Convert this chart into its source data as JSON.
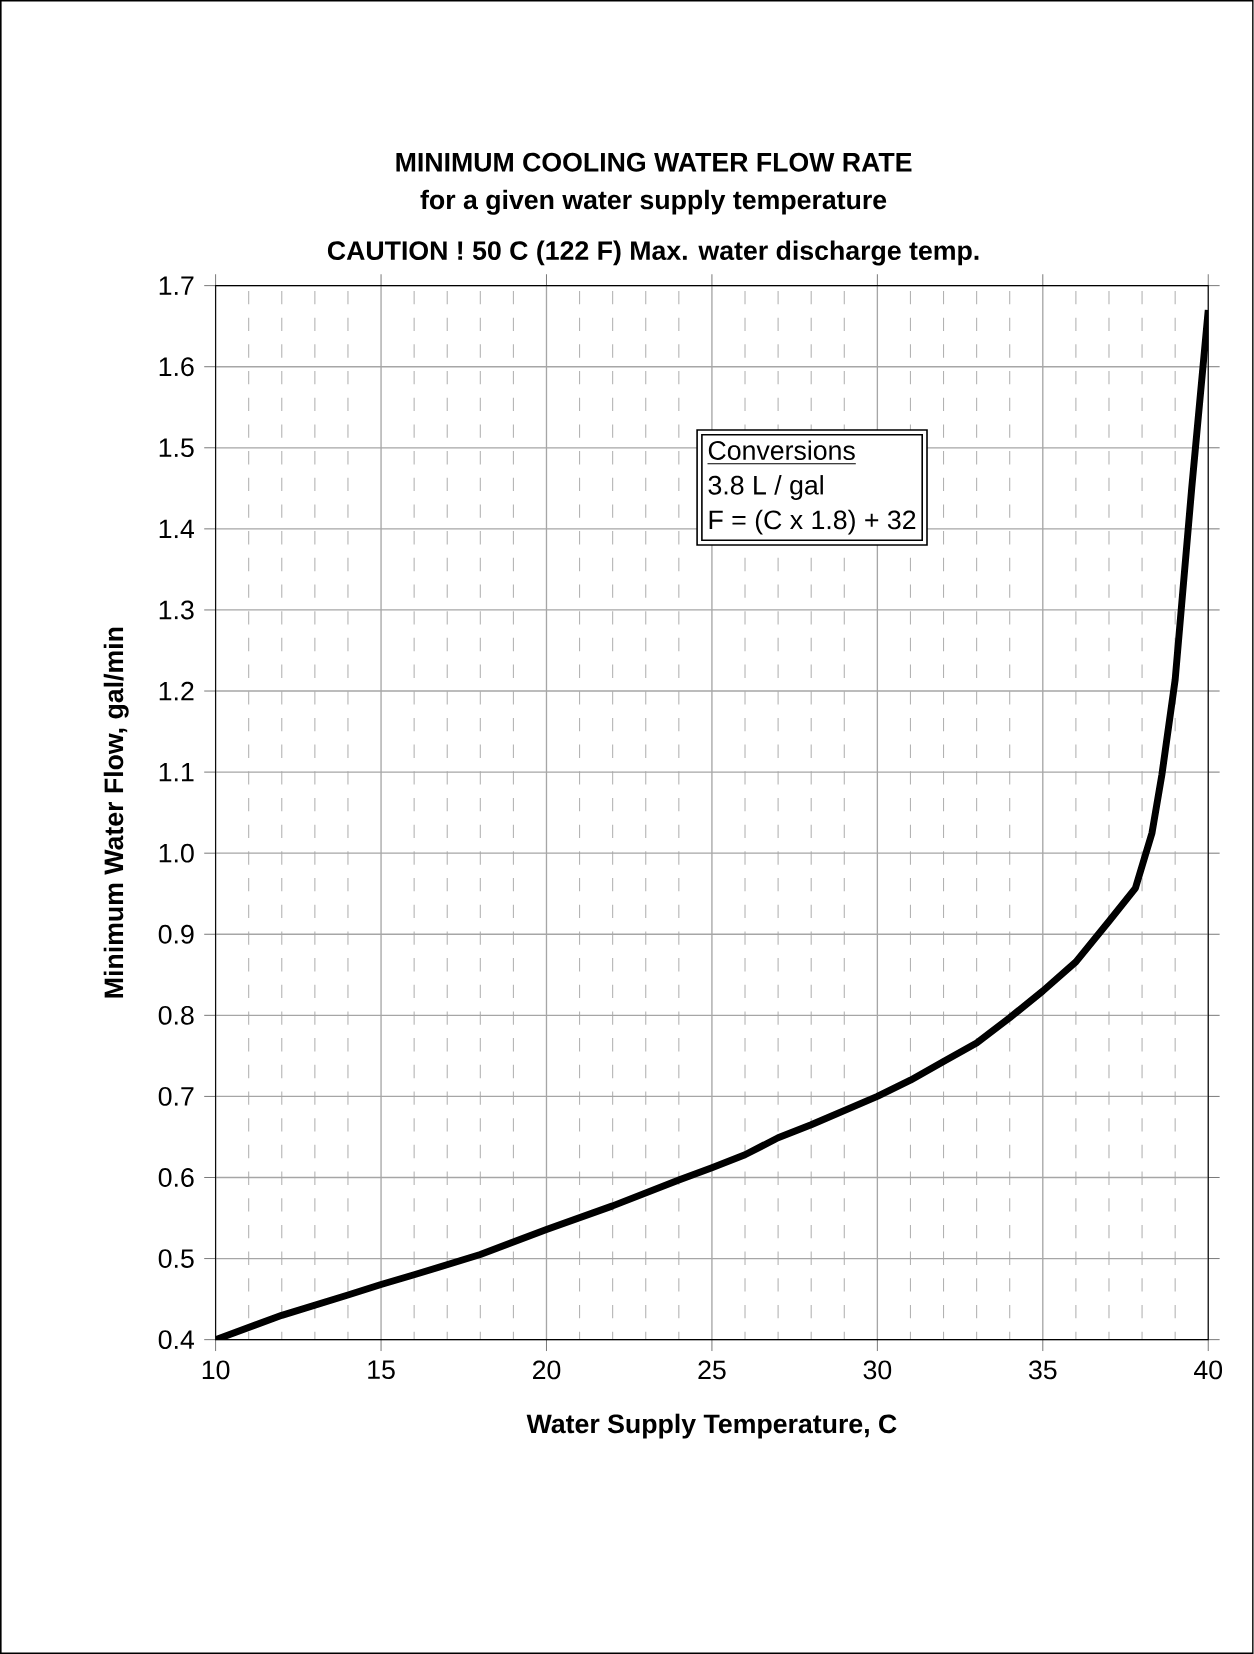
{
  "chart_data": {
    "type": "line",
    "title": "MINIMUM COOLING WATER FLOW RATE",
    "subtitle": "for a given water supply temperature",
    "xlabel": "Water Supply Temperature, C",
    "ylabel": "Minimum Water Flow, gal/min",
    "annotations": [
      "CAUTION !  50 C (122 F) Max. water discharge temp.",
      "Conversions",
      "3.8 L / gal",
      "F = (C x 1.8) + 32"
    ],
    "series": [
      {
        "color": "#000000",
        "x": [
          10,
          12,
          14,
          15,
          16,
          18,
          20,
          22,
          24,
          25,
          26,
          27,
          28,
          30,
          31,
          32,
          33,
          34,
          35,
          36,
          37,
          37.8,
          38.3,
          38.6,
          39,
          39.5,
          40
        ],
        "values": [
          0.4,
          0.43,
          0.455,
          0.468,
          0.48,
          0.505,
          0.536,
          0.565,
          0.597,
          0.612,
          0.628,
          0.649,
          0.665,
          0.7,
          0.72,
          0.743,
          0.766,
          0.797,
          0.83,
          0.866,
          0.916,
          0.957,
          1.025,
          1.097,
          1.214,
          1.45,
          1.67
        ]
      }
    ],
    "xlim": [
      10,
      40
    ],
    "xticks": [
      10,
      15,
      20,
      25,
      30,
      35,
      40
    ],
    "ylim": [
      0.4,
      1.7
    ],
    "yticks": [
      0.4,
      0.5,
      0.6,
      0.7,
      0.8,
      0.9,
      {
        "value": 1,
        "label": "1.0"
      },
      1.1,
      1.2,
      1.3,
      1.4,
      1.5,
      1.6,
      1.7
    ],
    "grid": true,
    "marker": "none",
    "line_style": "solid"
  }
}
